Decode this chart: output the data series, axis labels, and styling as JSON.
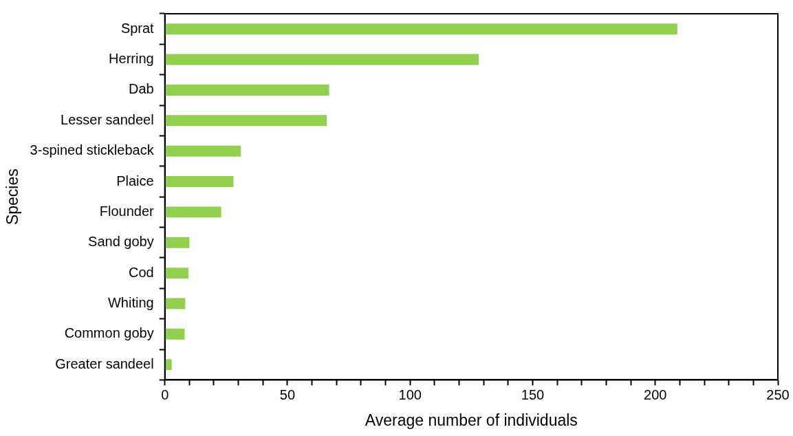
{
  "chart_data": {
    "type": "bar",
    "orientation": "horizontal",
    "xlabel": "Average number of individuals",
    "ylabel": "Species",
    "categories": [
      "Sprat",
      "Herring",
      "Dab",
      "Lesser sandeel",
      "3-spined stickleback",
      "Plaice",
      "Flounder",
      "Sand goby",
      "Cod",
      "Whiting",
      "Common goby",
      "Greater sandeel"
    ],
    "values": [
      209,
      128,
      67,
      66,
      31,
      28,
      23,
      10,
      9.6,
      8.3,
      8.1,
      2.8
    ],
    "color": "#92d050",
    "xlim": [
      0,
      250
    ],
    "xticks": [
      0,
      {
        "value": 10,
        "label": null
      },
      {
        "value": 20,
        "label": null
      },
      {
        "value": 30,
        "label": null
      },
      {
        "value": 40,
        "label": null
      },
      50,
      {
        "value": 60,
        "label": null
      },
      {
        "value": 70,
        "label": null
      },
      {
        "value": 80,
        "label": null
      },
      {
        "value": 90,
        "label": null
      },
      100,
      {
        "value": 110,
        "label": null
      },
      {
        "value": 120,
        "label": null
      },
      {
        "value": 130,
        "label": null
      },
      {
        "value": 140,
        "label": null
      },
      150,
      {
        "value": 160,
        "label": null
      },
      {
        "value": 170,
        "label": null
      },
      {
        "value": 180,
        "label": null
      },
      {
        "value": 190,
        "label": null
      },
      200,
      {
        "value": 210,
        "label": null
      },
      {
        "value": 220,
        "label": null
      },
      {
        "value": 230,
        "label": null
      },
      {
        "value": 240,
        "label": null
      },
      250
    ],
    "grid": false,
    "legend": false
  }
}
